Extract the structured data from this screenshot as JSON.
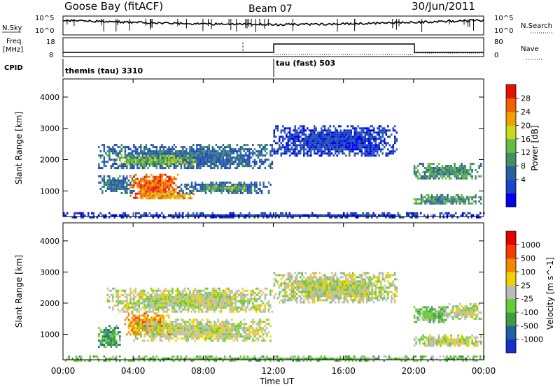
{
  "header": {
    "radar": "Goose Bay (fitACF)",
    "beam": "Beam 07",
    "date": "30/Jun/2011"
  },
  "nsky_panel": {
    "left_label": "N.Sky",
    "left_ticks": [
      "10^5",
      "10^0"
    ],
    "right_ticks": [
      "10^5",
      "10^0"
    ],
    "right_label": "N.Search"
  },
  "freq_panel": {
    "left_label_1": "Freq.",
    "left_label_2": "[MHz]",
    "left_ticks": [
      "18",
      "8"
    ],
    "right_ticks": [
      "80",
      "0"
    ],
    "right_label": "Nave"
  },
  "cpid_panel": {
    "label": "CPID",
    "mode_1": "themis (tau) 3310",
    "mode_2": "tau (fast) 503"
  },
  "chart_data": [
    {
      "panel": "power",
      "type": "heatmap",
      "ylabel": "Slant Range [km]",
      "x_ticks": [
        "00:00",
        "04:00",
        "08:00",
        "12:00",
        "16:00",
        "20:00",
        "00:00"
      ],
      "y_ticks": [
        "1000",
        "2000",
        "3000",
        "4000"
      ],
      "ylim_km": [
        180,
        4580
      ],
      "xlim_hours": [
        0,
        24
      ],
      "colorbar": {
        "label": "Power [dB]",
        "ticks": [
          "28",
          "24",
          "20",
          "16",
          "12",
          "8",
          "4"
        ],
        "colors": [
          "#0000ee",
          "#1c44c8",
          "#2c5da0",
          "#3f9160",
          "#66bb44",
          "#c8d81c",
          "#f0a000",
          "#f06000",
          "#e81000"
        ]
      },
      "regions": [
        {
          "t0": 2.0,
          "t1": 11.9,
          "r0": 1700,
          "r1": 2500,
          "level": 2
        },
        {
          "t0": 3.0,
          "t1": 7.5,
          "r0": 1850,
          "r1": 2150,
          "level": 4
        },
        {
          "t0": 2.0,
          "t1": 4.0,
          "r0": 950,
          "r1": 1500,
          "level": 2
        },
        {
          "t0": 3.8,
          "t1": 6.5,
          "r0": 800,
          "r1": 1550,
          "level": 7
        },
        {
          "t0": 4.5,
          "t1": 7.5,
          "r0": 750,
          "r1": 1000,
          "level": 6
        },
        {
          "t0": 6.5,
          "t1": 11.8,
          "r0": 950,
          "r1": 1300,
          "level": 2
        },
        {
          "t0": 8.0,
          "t1": 10.5,
          "r0": 1050,
          "r1": 1200,
          "level": 4
        },
        {
          "t0": 12.0,
          "t1": 19.0,
          "r0": 2100,
          "r1": 3100,
          "level": 1
        },
        {
          "t0": 20.0,
          "t1": 23.8,
          "r0": 1400,
          "r1": 1900,
          "level": 3
        },
        {
          "t0": 20.0,
          "t1": 23.8,
          "r0": 600,
          "r1": 900,
          "level": 3
        },
        {
          "t0": 0.0,
          "t1": 24.0,
          "r0": 180,
          "r1": 320,
          "level": 1
        }
      ]
    },
    {
      "panel": "velocity",
      "type": "heatmap",
      "ylabel": "Slant Range [km]",
      "xlabel": "Time UT",
      "x_ticks": [
        "00:00",
        "04:00",
        "08:00",
        "12:00",
        "16:00",
        "20:00",
        "00:00"
      ],
      "y_ticks": [
        "1000",
        "2000",
        "3000",
        "4000"
      ],
      "ylim_km": [
        180,
        4580
      ],
      "xlim_hours": [
        0,
        24
      ],
      "colorbar": {
        "label": "Velocity [m s^-1]",
        "ticks": [
          "1000",
          "500",
          "100",
          "25",
          "-25",
          "-100",
          "-500",
          "-1000"
        ],
        "colors": [
          "#1830c8",
          "#2060a0",
          "#3f9c40",
          "#66cc33",
          "#bbbbbb",
          "#f0d000",
          "#f08800",
          "#f04000",
          "#e80000"
        ]
      },
      "regions": [
        {
          "t0": 2.5,
          "t1": 11.9,
          "r0": 1700,
          "r1": 2500,
          "level": 4
        },
        {
          "t0": 12.0,
          "t1": 19.0,
          "r0": 2000,
          "r1": 3000,
          "level": 4
        },
        {
          "t0": 2.0,
          "t1": 3.2,
          "r0": 600,
          "r1": 1300,
          "level": 2
        },
        {
          "t0": 3.5,
          "t1": 6.0,
          "r0": 1000,
          "r1": 1700,
          "level": 6
        },
        {
          "t0": 4.0,
          "t1": 11.8,
          "r0": 800,
          "r1": 1500,
          "level": 4
        },
        {
          "t0": 20.0,
          "t1": 23.8,
          "r0": 600,
          "r1": 1000,
          "level": 4
        },
        {
          "t0": 20.0,
          "t1": 22.0,
          "r0": 1400,
          "r1": 1900,
          "level": 3
        },
        {
          "t0": 22.0,
          "t1": 23.8,
          "r0": 1500,
          "r1": 2000,
          "level": 4
        },
        {
          "t0": 0.0,
          "t1": 24.0,
          "r0": 180,
          "r1": 320,
          "level": 3
        }
      ]
    }
  ]
}
